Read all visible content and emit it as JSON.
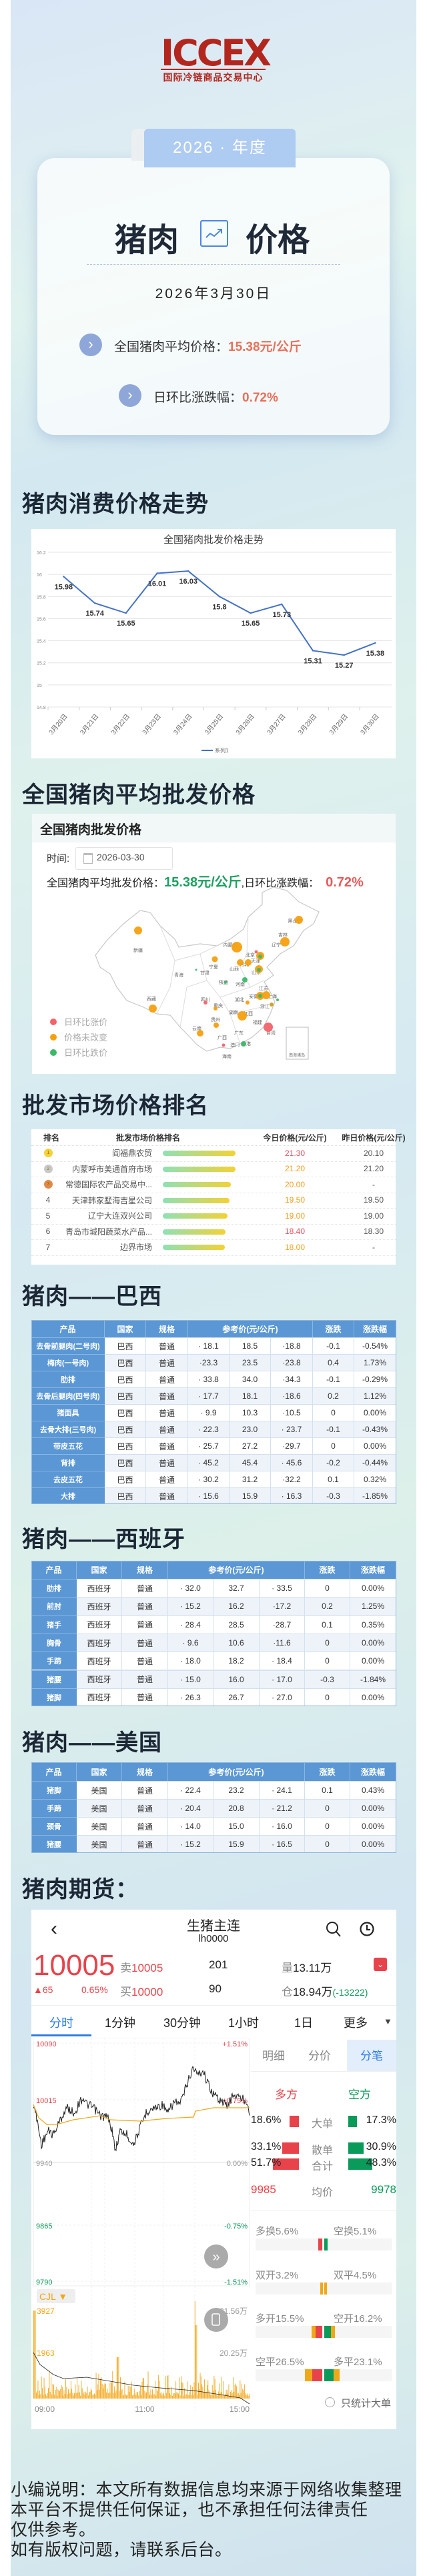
{
  "logo": {
    "text": "ICCEX",
    "subtitle": "国际冷链商品交易中心"
  },
  "hero": {
    "year_tab": "2026 · 年度",
    "title_left": "猪肉",
    "title_right": "价格",
    "icon": "trend-up-icon",
    "date": "2026年3月30日",
    "avg_label": "全国猪肉平均价格：",
    "avg_value": "15.38元/公斤",
    "change_label": "日环比涨跌幅：",
    "change_value": "0.72%"
  },
  "sections": {
    "trend": "猪肉消费价格走势",
    "wholesale": "全国猪肉平均批发价格",
    "ranking": "批发市场价格排名",
    "brazil": "猪肉——巴西",
    "spain": "猪肉——西班牙",
    "usa": "猪肉——美国",
    "futures": "猪肉期货："
  },
  "chart_data": {
    "type": "line",
    "title": "全国猪肉批发价格走势",
    "categories": [
      "3月20日",
      "3月21日",
      "3月22日",
      "3月23日",
      "3月24日",
      "3月25日",
      "3月26日",
      "3月27日",
      "3月28日",
      "3月29日",
      "3月30日"
    ],
    "series": [
      {
        "name": "系列1",
        "values": [
          15.98,
          15.74,
          15.65,
          16.01,
          16.03,
          15.8,
          15.65,
          15.73,
          15.31,
          15.27,
          15.38
        ]
      }
    ],
    "ylim": [
      14.8,
      16.2
    ],
    "yticks": [
      "14.8",
      "15",
      "15.2",
      "15.4",
      "15.6",
      "15.8",
      "16",
      "16.2"
    ],
    "grid": true,
    "legend": "bottom",
    "color": "#4472c4"
  },
  "map_panel": {
    "header": "全国猪肉批发价格",
    "time_label": "时间:",
    "date": "2026-03-30",
    "price_label": "全国猪肉平均批发价格：",
    "price_value": "15.38元/公斤",
    "sep": ",",
    "change_label": "日环比涨跌幅：",
    "change_value": "0.72%",
    "legend": [
      {
        "label": "日环比涨价",
        "color": "#f0646a"
      },
      {
        "label": "价格未改变",
        "color": "#f5a00f"
      },
      {
        "label": "日环比跌价",
        "color": "#3cb86a"
      }
    ],
    "provinces": [
      "新疆",
      "西藏",
      "青海",
      "甘肃",
      "宁夏",
      "内蒙古",
      "黑龙江",
      "吉林",
      "辽宁",
      "北京",
      "天津",
      "河北",
      "山西",
      "山东",
      "陕西",
      "河南",
      "江苏",
      "安徽",
      "上海",
      "湖北",
      "四川",
      "重庆",
      "浙江",
      "湖南",
      "江西",
      "贵州",
      "福建",
      "云南",
      "台湾",
      "广东",
      "广西",
      "香港",
      "澳门",
      "海南"
    ],
    "island_label": "南海诸岛"
  },
  "ranking": {
    "columns": [
      "排名",
      "批发市场价格排名",
      "今日价格(元/公斤)",
      "昨日价格(元/公斤)"
    ],
    "bar_colors": [
      "#8fe0b5",
      "#f2d235"
    ],
    "rows": [
      {
        "rank": "1",
        "medal": "gold",
        "name": "阎福鼎农贸",
        "today": "21.30",
        "today_color": "#e8505b",
        "yesterday": "20.10",
        "level": 1.0
      },
      {
        "rank": "2",
        "medal": "silver",
        "name": "内蒙呼市美通首府市场",
        "today": "21.20",
        "today_color": "#f0a020",
        "yesterday": "21.20",
        "level": 1.0
      },
      {
        "rank": "3",
        "medal": "bronze",
        "name": "常德国际农产品交易中...",
        "today": "20.00",
        "today_color": "#f0a020",
        "yesterday": "-",
        "level": 0.94
      },
      {
        "rank": "4",
        "name": "天津韩家墅海吉星公司",
        "today": "19.50",
        "today_color": "#f0a020",
        "yesterday": "19.50",
        "level": 0.92
      },
      {
        "rank": "5",
        "name": "辽宁大连双兴公司",
        "today": "19.00",
        "today_color": "#f0a020",
        "yesterday": "19.00",
        "level": 0.89
      },
      {
        "rank": "6",
        "name": "青岛市城阳蔬菜水产品...",
        "today": "18.40",
        "today_color": "#e8505b",
        "yesterday": "18.30",
        "level": 0.86
      },
      {
        "rank": "7",
        "name": "边界市场",
        "today": "18.00",
        "today_color": "#f0a020",
        "yesterday": "-",
        "level": 0.85
      }
    ]
  },
  "table_header": {
    "product": "产品",
    "country": "国家",
    "spec": "规格",
    "ref": "参考价(元/公斤)",
    "change": "涨跌",
    "pct": "涨跌幅"
  },
  "brazil": [
    [
      "去骨前腿肉(二号肉)",
      "巴西",
      "普通",
      "· 18.1",
      "18.5",
      "·18.8",
      "-0.1",
      "-0.54%"
    ],
    [
      "梅肉(一号肉)",
      "巴西",
      "普通",
      "·23.3",
      "23.5",
      "·23.8",
      "0.4",
      "1.73%"
    ],
    [
      "肋排",
      "巴西",
      "普通",
      "· 33.8",
      "34.0",
      "·34.3",
      "-0.1",
      "-0.29%"
    ],
    [
      "去骨后腿肉(四号肉)",
      "巴西",
      "普通",
      "· 17.7",
      "18.1",
      "·18.6",
      "0.2",
      "1.12%"
    ],
    [
      "猪面具",
      "巴西",
      "普通",
      "· 9.9",
      "10.3",
      "·10.5",
      "0",
      "0.00%"
    ],
    [
      "去骨大排(三号肉)",
      "巴西",
      "普通",
      "· 22.3",
      "23.0",
      "· 23.7",
      "-0.1",
      "-0.43%"
    ],
    [
      "带皮五花",
      "巴西",
      "普通",
      "· 25.7",
      "27.2",
      "·29.7",
      "0",
      "0.00%"
    ],
    [
      "背排",
      "巴西",
      "普通",
      "· 45.2",
      "45.4",
      "· 45.6",
      "-0.2",
      "-0.44%"
    ],
    [
      "去皮五花",
      "巴西",
      "普通",
      "· 30.2",
      "31.2",
      "·32.2",
      "0.1",
      "0.32%"
    ],
    [
      "大排",
      "巴西",
      "普通",
      "· 15.6",
      "15.9",
      "· 16.3",
      "-0.3",
      "-1.85%"
    ]
  ],
  "spain": [
    [
      "肋排",
      "西班牙",
      "普通",
      "· 32.0",
      "32.7",
      "· 33.5",
      "0",
      "0.00%"
    ],
    [
      "前肘",
      "西班牙",
      "普通",
      "· 15.2",
      "16.2",
      "·17.2",
      "0.2",
      "1.25%"
    ],
    [
      "猪手",
      "西班牙",
      "普通",
      "· 28.4",
      "28.5",
      "·28.7",
      "0.1",
      "0.35%"
    ],
    [
      "胸骨",
      "西班牙",
      "普通",
      "· 9.6",
      "10.6",
      "·11.6",
      "0",
      "0.00%"
    ],
    [
      "手蹄",
      "西班牙",
      "普通",
      "· 18.0",
      "18.2",
      "· 18.4",
      "0",
      "0.00%"
    ],
    [
      "猪腰",
      "西班牙",
      "普通",
      "· 15.0",
      "16.0",
      "· 17.0",
      "-0.3",
      "-1.84%"
    ],
    [
      "猪脚",
      "西班牙",
      "普通",
      "· 26.3",
      "26.7",
      "· 27.0",
      "0",
      "0.00%"
    ]
  ],
  "usa": [
    [
      "猪脚",
      "美国",
      "普通",
      "· 22.4",
      "23.2",
      "· 24.1",
      "0.1",
      "0.43%"
    ],
    [
      "手蹄",
      "美国",
      "普通",
      "· 20.4",
      "20.8",
      "· 21.2",
      "0",
      "0.00%"
    ],
    [
      "颈骨",
      "美国",
      "普通",
      "· 14.0",
      "15.0",
      "· 16.0",
      "0",
      "0.00%"
    ],
    [
      "猪腰",
      "美国",
      "普通",
      "· 15.2",
      "15.9",
      "· 16.5",
      "0",
      "0.00%"
    ]
  ],
  "futures": {
    "title": "生猪主连",
    "code": "lh0000",
    "price": "10005",
    "change": "▲65",
    "change_pct": "0.65%",
    "ask_label": "卖",
    "ask": "10005",
    "ask_vol": "201",
    "bid_label": "买",
    "bid": "10000",
    "bid_vol": "90",
    "volume_label": "量",
    "volume": "13.11万",
    "oi_label": "仓",
    "oi": "18.94万",
    "oi_change": "(-13222)",
    "tabs": [
      "分时",
      "1分钟",
      "30分钟",
      "1小时",
      "1日",
      "更多"
    ],
    "more_arrow": "▼",
    "axis_left": [
      "10090",
      "10015",
      "9940",
      "9865",
      "9790"
    ],
    "axis_right": [
      "+1.51%",
      "+0.75%",
      "0.00%",
      "-0.75%",
      "-1.51%"
    ],
    "vol_indicator": "CJL ▼",
    "vol_left": [
      "3927",
      "1963"
    ],
    "vol_right": [
      "21.56万",
      "20.25万"
    ],
    "times": [
      "09:00",
      "11:00",
      "15:00"
    ],
    "side_tabs": [
      "明细",
      "分价",
      "分笔"
    ],
    "long": "多方",
    "short": "空方",
    "flow": [
      {
        "long": "18.6%",
        "label": "大单",
        "short": "17.3%",
        "long_level": 0.186,
        "short_level": 0.173
      },
      {
        "long": "33.1%",
        "label": "散单",
        "short": "30.9%",
        "long_level": 0.331,
        "short_level": 0.309
      },
      {
        "long": "51.7%",
        "label": "合计",
        "short": "48.3%",
        "long_level": 0.517,
        "short_level": 0.483
      }
    ],
    "avg": {
      "long": "9985",
      "label": "均价",
      "short": "9978"
    },
    "stats": [
      {
        "left": "多换5.6%",
        "right": "空换5.1%"
      },
      {
        "left": "双开3.2%",
        "right": "双平4.5%"
      },
      {
        "left": "多开15.5%",
        "right": "空开16.2%"
      },
      {
        "left": "空平26.5%",
        "right": "多平23.1%"
      }
    ],
    "only_big": "只统计大单",
    "colors": {
      "up": "#e8434b",
      "down": "#0a9a5a",
      "avg": "#f0a818",
      "accent": "#2f7de1"
    }
  },
  "footer": [
    "小编说明：本文所有数据信息均来源于网络收集整理",
    "本平台不提供任何保证，也不承担任何法律责任",
    "仅供参考。",
    "如有版权问题，请联系后台。"
  ]
}
